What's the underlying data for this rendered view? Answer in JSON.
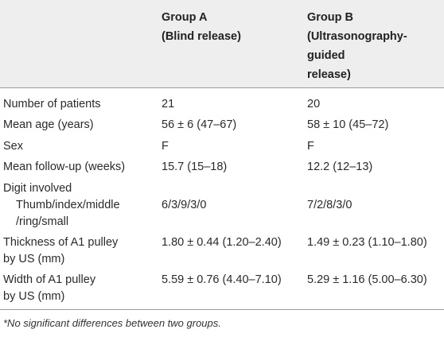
{
  "header": {
    "group_a": [
      "Group A",
      "(Blind release)"
    ],
    "group_b": [
      "Group B",
      "(Ultrasonography-",
      "guided",
      "release)"
    ]
  },
  "rows": [
    {
      "label": [
        "Number of patients"
      ],
      "a": [
        "21"
      ],
      "b": [
        "20"
      ]
    },
    {
      "label": [
        "Mean age (years)"
      ],
      "a": [
        "56 ± 6 (47–67)"
      ],
      "b": [
        "58 ± 10 (45–72)"
      ]
    },
    {
      "label": [
        "Sex"
      ],
      "a": [
        "F"
      ],
      "b": [
        "F"
      ]
    },
    {
      "label": [
        "Mean follow-up (weeks)"
      ],
      "a": [
        "15.7 (15–18)"
      ],
      "b": [
        "12.2 (12–13)"
      ]
    },
    {
      "label": [
        "Digit involved",
        "Thumb/index/middle",
        "/ring/small"
      ],
      "a": [
        "",
        "6/3/9/3/0"
      ],
      "b": [
        "",
        "7/2/8/3/0"
      ]
    },
    {
      "label": [
        "Thickness of A1 pulley",
        "by US (mm)"
      ],
      "a": [
        "1.80 ± 0.44 (1.20–2.40)"
      ],
      "b": [
        "1.49 ± 0.23 (1.10–1.80)"
      ]
    },
    {
      "label": [
        "Width of A1 pulley",
        "by US (mm)"
      ],
      "a": [
        "5.59 ± 0.76 (4.40–7.10)"
      ],
      "b": [
        "5.29 ± 1.16 (5.00–6.30)"
      ]
    }
  ],
  "footnote": "*No significant differences between two groups."
}
